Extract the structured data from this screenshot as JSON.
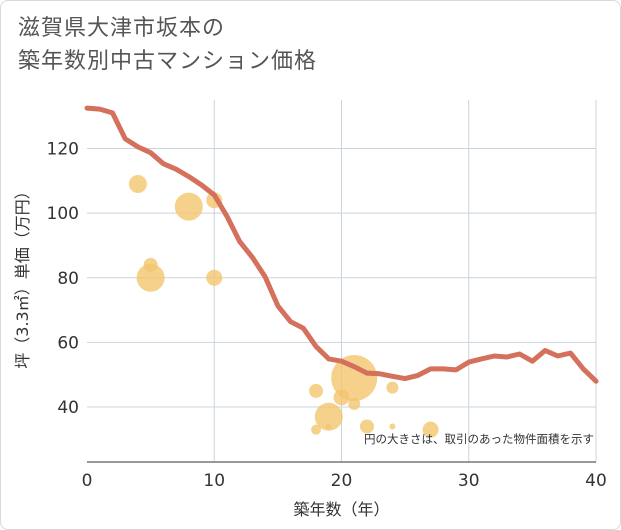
{
  "title_lines": [
    "滋賀県大津市坂本の",
    "築年数別中古マンション価格"
  ],
  "chart_data": {
    "type": "line",
    "xlabel": "築年数（年）",
    "ylabel": "坪（3.3㎡）単価（万円）",
    "xlim": [
      0,
      40
    ],
    "ylim": [
      23,
      135
    ],
    "x_ticks": [
      0,
      10,
      20,
      30,
      40
    ],
    "y_ticks": [
      40,
      60,
      80,
      100,
      120
    ],
    "grid": true,
    "annotation": "円の大きさは、取引のあった物件面積を示す",
    "line_color": "#d4705c",
    "bubble_color": "#f2c46b",
    "series": [
      {
        "type": "line",
        "points": [
          [
            0,
            132.5
          ],
          [
            1,
            132.2
          ],
          [
            2,
            131.0
          ],
          [
            3,
            123.0
          ],
          [
            4,
            120.5
          ],
          [
            5,
            118.7
          ],
          [
            6,
            115.3
          ],
          [
            7,
            113.6
          ],
          [
            8,
            111.3
          ],
          [
            9,
            108.7
          ],
          [
            10,
            105.6
          ],
          [
            11,
            99.0
          ],
          [
            12,
            91.2
          ],
          [
            13,
            86.3
          ],
          [
            14,
            80.3
          ],
          [
            15,
            71.3
          ],
          [
            16,
            66.4
          ],
          [
            17,
            64.4
          ],
          [
            18,
            58.7
          ],
          [
            19,
            54.9
          ],
          [
            20,
            54.2
          ],
          [
            21,
            52.5
          ],
          [
            22,
            50.5
          ],
          [
            23,
            50.3
          ],
          [
            24,
            49.5
          ],
          [
            25,
            48.8
          ],
          [
            26,
            49.8
          ],
          [
            27,
            51.8
          ],
          [
            28,
            51.8
          ],
          [
            29,
            51.5
          ],
          [
            30,
            53.9
          ],
          [
            31,
            54.9
          ],
          [
            32,
            55.8
          ],
          [
            33,
            55.5
          ],
          [
            34,
            56.4
          ],
          [
            35,
            54.2
          ],
          [
            36,
            57.5
          ],
          [
            37,
            55.8
          ],
          [
            38,
            56.7
          ],
          [
            39,
            51.8
          ],
          [
            40,
            48.0
          ]
        ]
      },
      {
        "type": "bubble",
        "points": [
          {
            "x": 4,
            "y": 109,
            "size": 9
          },
          {
            "x": 5,
            "y": 84,
            "size": 7
          },
          {
            "x": 5,
            "y": 80,
            "size": 14
          },
          {
            "x": 8,
            "y": 102,
            "size": 14
          },
          {
            "x": 10,
            "y": 104,
            "size": 8
          },
          {
            "x": 10,
            "y": 80,
            "size": 8
          },
          {
            "x": 18,
            "y": 45,
            "size": 7
          },
          {
            "x": 18,
            "y": 33,
            "size": 5
          },
          {
            "x": 19,
            "y": 37,
            "size": 14
          },
          {
            "x": 19,
            "y": 34,
            "size": 3
          },
          {
            "x": 20,
            "y": 43,
            "size": 8
          },
          {
            "x": 21,
            "y": 49,
            "size": 23
          },
          {
            "x": 21,
            "y": 41,
            "size": 6
          },
          {
            "x": 22,
            "y": 34,
            "size": 7
          },
          {
            "x": 24,
            "y": 46,
            "size": 6
          },
          {
            "x": 24,
            "y": 34,
            "size": 3
          },
          {
            "x": 27,
            "y": 33,
            "size": 8
          }
        ]
      }
    ]
  }
}
